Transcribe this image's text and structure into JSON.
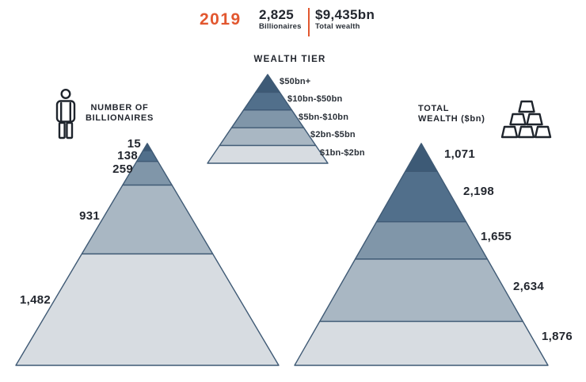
{
  "header": {
    "year": "2019",
    "stats": [
      {
        "value": "2,825",
        "label": "Billionaires"
      },
      {
        "value": "$9,435bn",
        "label": "Total wealth"
      }
    ]
  },
  "legend": {
    "title": "WEALTH TIER",
    "tiers": [
      "$50bn+",
      "$10bn-$50bn",
      "$5bn-$10bn",
      "$2bn-$5bn",
      "$1bn-$2bn"
    ]
  },
  "left_section": {
    "title_line1": "NUMBER OF",
    "title_line2": "BILLIONAIRES",
    "icon": "person-icon"
  },
  "right_section": {
    "title_line1": "TOTAL",
    "title_line2": "WEALTH ($bn)",
    "icon": "gold-bars-icon"
  },
  "colors": {
    "accent_orange": "#E2572F",
    "text_dark": "#23272F",
    "pyramid_stroke": "#3F5A75",
    "tier_colors": [
      "#3D5A76",
      "#516F8B",
      "#8096A9",
      "#A9B7C3",
      "#D7DCE1"
    ]
  },
  "chart_data": {
    "type": "pyramid",
    "title": "Billionaire wealth tiers, 2019",
    "year": 2019,
    "summary": {
      "billionaires_total": 2825,
      "total_wealth_bn": 9435
    },
    "tier_labels": [
      "$50bn+",
      "$10bn-$50bn",
      "$5bn-$10bn",
      "$2bn-$5bn",
      "$1bn-$2bn"
    ],
    "tier_colors": [
      "#3D5A76",
      "#516F8B",
      "#8096A9",
      "#A9B7C3",
      "#D7DCE1"
    ],
    "legend_fractions": [
      0.2,
      0.2,
      0.2,
      0.2,
      0.2
    ],
    "pyramids": [
      {
        "name": "NUMBER OF BILLIONAIRES",
        "label_side": "left",
        "values": [
          15,
          138,
          259,
          931,
          1482
        ],
        "labels": [
          "15",
          "138",
          "259",
          "931",
          "1,482"
        ],
        "height_fractions": [
          0.033,
          0.048,
          0.107,
          0.31,
          0.502
        ]
      },
      {
        "name": "TOTAL WEALTH ($bn)",
        "label_side": "right",
        "values": [
          1071,
          2198,
          1655,
          2634,
          1876
        ],
        "labels": [
          "1,071",
          "2,198",
          "1,655",
          "2,634",
          "1,876"
        ],
        "height_fractions": [
          0.126,
          0.227,
          0.168,
          0.281,
          0.198
        ]
      }
    ]
  }
}
